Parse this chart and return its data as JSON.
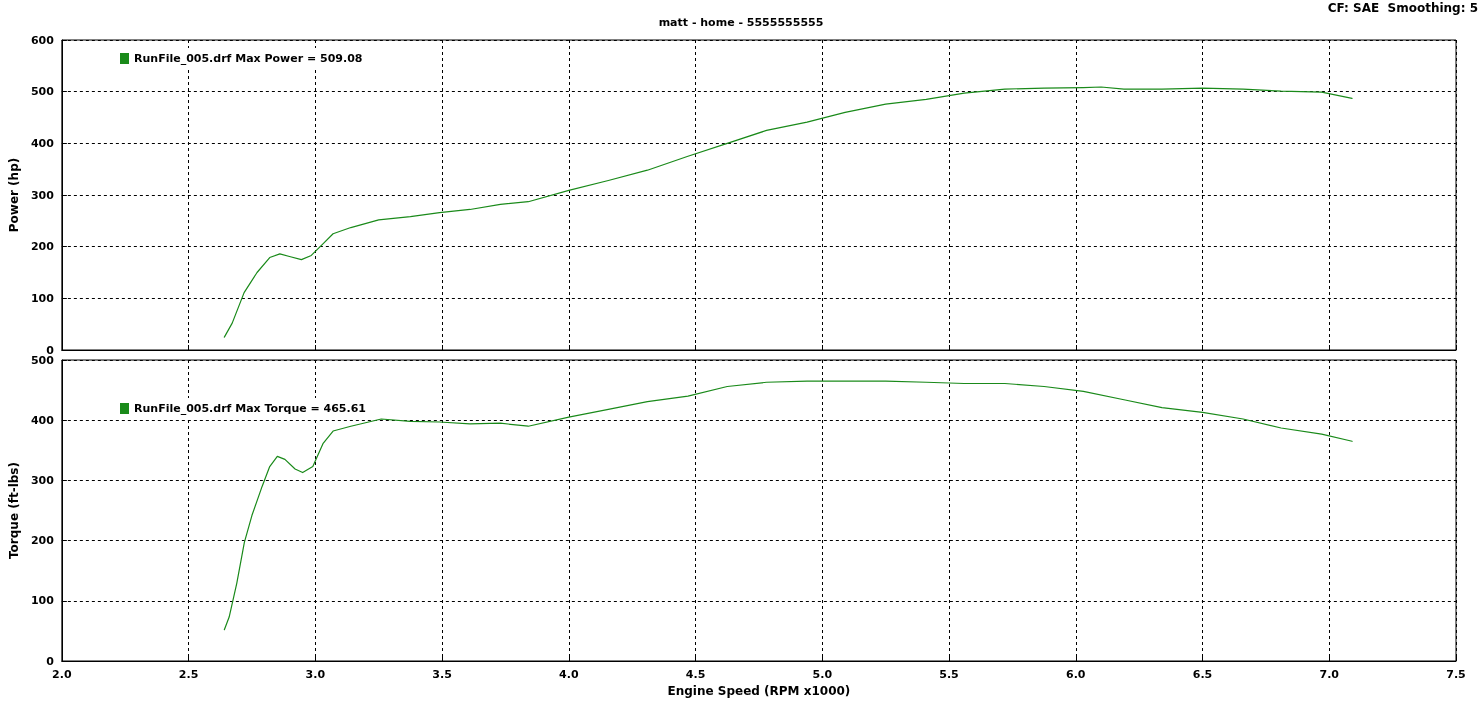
{
  "chart_data": [
    {
      "type": "line",
      "subtitle": "matt - home - 5555555555",
      "ylabel": "Power (hp)",
      "annotations": [
        "CF: SAE  Smoothing: 5"
      ],
      "xlim": [
        2,
        7.5
      ],
      "xticks": [
        2,
        2.5,
        3,
        3.5,
        4,
        4.5,
        5,
        5.5,
        6,
        6.5,
        7,
        7.5
      ],
      "ylim": [
        0,
        600
      ],
      "yticks": [
        0,
        100,
        200,
        300,
        400,
        500,
        600
      ],
      "tick_labels": "y",
      "grid": true,
      "legend": "top left",
      "marker": "none",
      "line_style": "solid",
      "series": [
        {
          "name": "RunFile_005.drf Max Power = 509.08",
          "color": "#1a8a1a",
          "x": [
            2.641,
            2.672,
            2.719,
            2.77,
            2.82,
            2.86,
            2.898,
            2.945,
            2.984,
            3.031,
            3.07,
            3.14,
            3.25,
            3.375,
            3.49,
            3.61,
            3.73,
            3.84,
            4.0,
            4.156,
            4.31,
            4.47,
            4.625,
            4.78,
            4.94,
            5.09,
            5.25,
            5.41,
            5.56,
            5.72,
            5.875,
            6.03,
            6.1,
            6.19,
            6.34,
            6.5,
            6.66,
            6.81,
            6.97,
            7.09
          ],
          "values": [
            25,
            52,
            111,
            150,
            179,
            186,
            181,
            175,
            183,
            206,
            225,
            237,
            252,
            258,
            266,
            272,
            282,
            287,
            309,
            328,
            348,
            375,
            400,
            425,
            441,
            460,
            476,
            485,
            497,
            505,
            507,
            508,
            509,
            505,
            505,
            507,
            505,
            501,
            499,
            487
          ]
        }
      ]
    },
    {
      "type": "line",
      "xlabel": "Engine Speed (RPM x1000)",
      "ylabel": "Torque (ft-lbs)",
      "xlim": [
        2,
        7.5
      ],
      "xticks": [
        {
          "value": 2,
          "label": "2.0"
        },
        2.5,
        {
          "value": 3,
          "label": "3.0"
        },
        3.5,
        {
          "value": 4,
          "label": "4.0"
        },
        4.5,
        {
          "value": 5,
          "label": "5.0"
        },
        5.5,
        {
          "value": 6,
          "label": "6.0"
        },
        6.5,
        {
          "value": 7,
          "label": "7.0"
        },
        7.5
      ],
      "ylim": [
        0,
        500
      ],
      "yticks": [
        0,
        100,
        200,
        300,
        400,
        500
      ],
      "grid": true,
      "legend": "top left",
      "marker": "none",
      "line_style": "solid",
      "series": [
        {
          "name": "RunFile_005.drf Max Torque = 465.61",
          "color": "#1a8a1a",
          "x": [
            2.641,
            2.66,
            2.69,
            2.72,
            2.75,
            2.79,
            2.82,
            2.85,
            2.88,
            2.92,
            2.95,
            2.99,
            3.03,
            3.07,
            3.14,
            3.26,
            3.375,
            3.49,
            3.61,
            3.73,
            3.84,
            4.0,
            4.156,
            4.31,
            4.47,
            4.625,
            4.78,
            4.94,
            5.09,
            5.25,
            5.41,
            5.56,
            5.72,
            5.875,
            6.03,
            6.19,
            6.34,
            6.5,
            6.66,
            6.81,
            6.97,
            7.09
          ],
          "values": [
            52,
            73,
            129,
            197,
            242,
            290,
            323,
            340,
            335,
            319,
            313,
            323,
            361,
            382,
            390,
            402,
            398,
            397,
            394,
            395,
            390,
            405,
            418,
            431,
            440,
            456,
            463,
            465,
            465,
            465,
            463,
            461,
            461,
            456,
            448,
            434,
            421,
            413,
            402,
            387,
            377,
            365
          ]
        }
      ]
    }
  ]
}
